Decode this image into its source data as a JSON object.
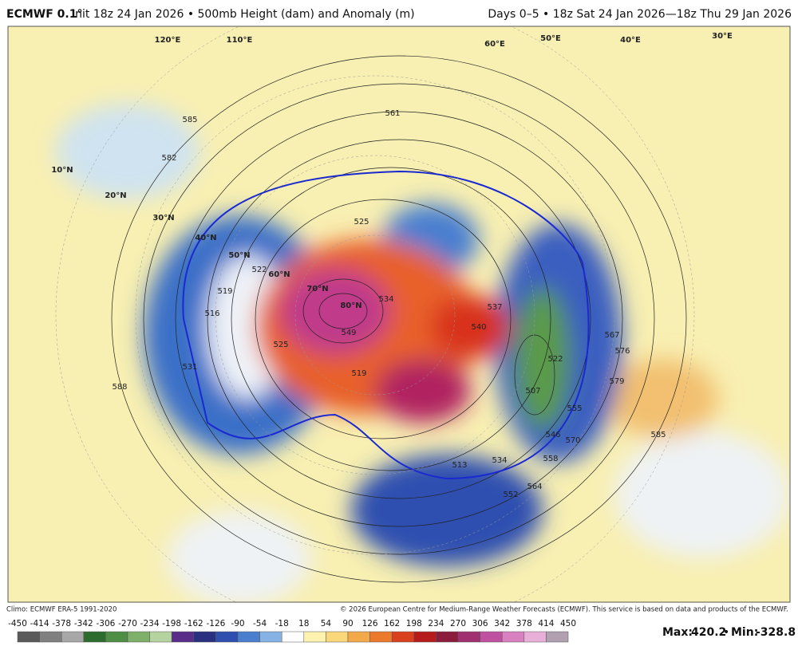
{
  "header": {
    "model": "ECMWF 0.1°",
    "description": "Init 18z 24 Jan 2026 • 500mb Height (dam) and Anomaly (m)",
    "period": "Days 0–5 • 18z Sat 24 Jan 2026—18z Thu 29 Jan 2026"
  },
  "map": {
    "latitude_labels": [
      "10°N",
      "20°N",
      "30°N",
      "40°N",
      "50°N",
      "60°N",
      "70°N",
      "80°N"
    ],
    "longitude_labels": [
      "120°E",
      "110°E",
      "60°E",
      "50°E",
      "40°E",
      "30°E"
    ],
    "contour_labels": [
      "585",
      "582",
      "588",
      "585",
      "579",
      "576",
      "567",
      "561",
      "525",
      "522",
      "519",
      "516",
      "531",
      "549",
      "534",
      "540",
      "537",
      "519",
      "525",
      "507",
      "522",
      "546",
      "555",
      "564",
      "570",
      "558",
      "552",
      "513",
      "534"
    ]
  },
  "footer": {
    "climo": "Climo: ECMWF ERA-5 1991-2020",
    "copyright": "© 2026 European Centre for Medium-Range Weather Forecasts (ECMWF). This service is based on data and products of the ECMWF."
  },
  "colorbar": {
    "ticks": [
      -450,
      -414,
      -378,
      -342,
      -306,
      -270,
      -234,
      -198,
      -162,
      -126,
      -90,
      -54,
      -18,
      18,
      54,
      90,
      126,
      162,
      198,
      234,
      270,
      306,
      342,
      378,
      414,
      450
    ],
    "colors": [
      "#5a5a5a",
      "#808080",
      "#a8a8a8",
      "#2e6b2e",
      "#4f8f45",
      "#7fb06a",
      "#b5d39e",
      "#5a2d8a",
      "#28307f",
      "#2f4fb0",
      "#4a7fd0",
      "#86b2e6",
      "#ffffff",
      "#fdf2b0",
      "#f9d77a",
      "#f3a94a",
      "#ec7a2c",
      "#d9401e",
      "#b71c1c",
      "#8c1c3c",
      "#a03070",
      "#c050a0",
      "#d880c0",
      "#e8b0d8",
      "#b0a0b0"
    ]
  },
  "stats": {
    "max_label": "Max:",
    "max": 420.2,
    "separator": "•",
    "min_label": "Min:",
    "min": -328.8
  }
}
